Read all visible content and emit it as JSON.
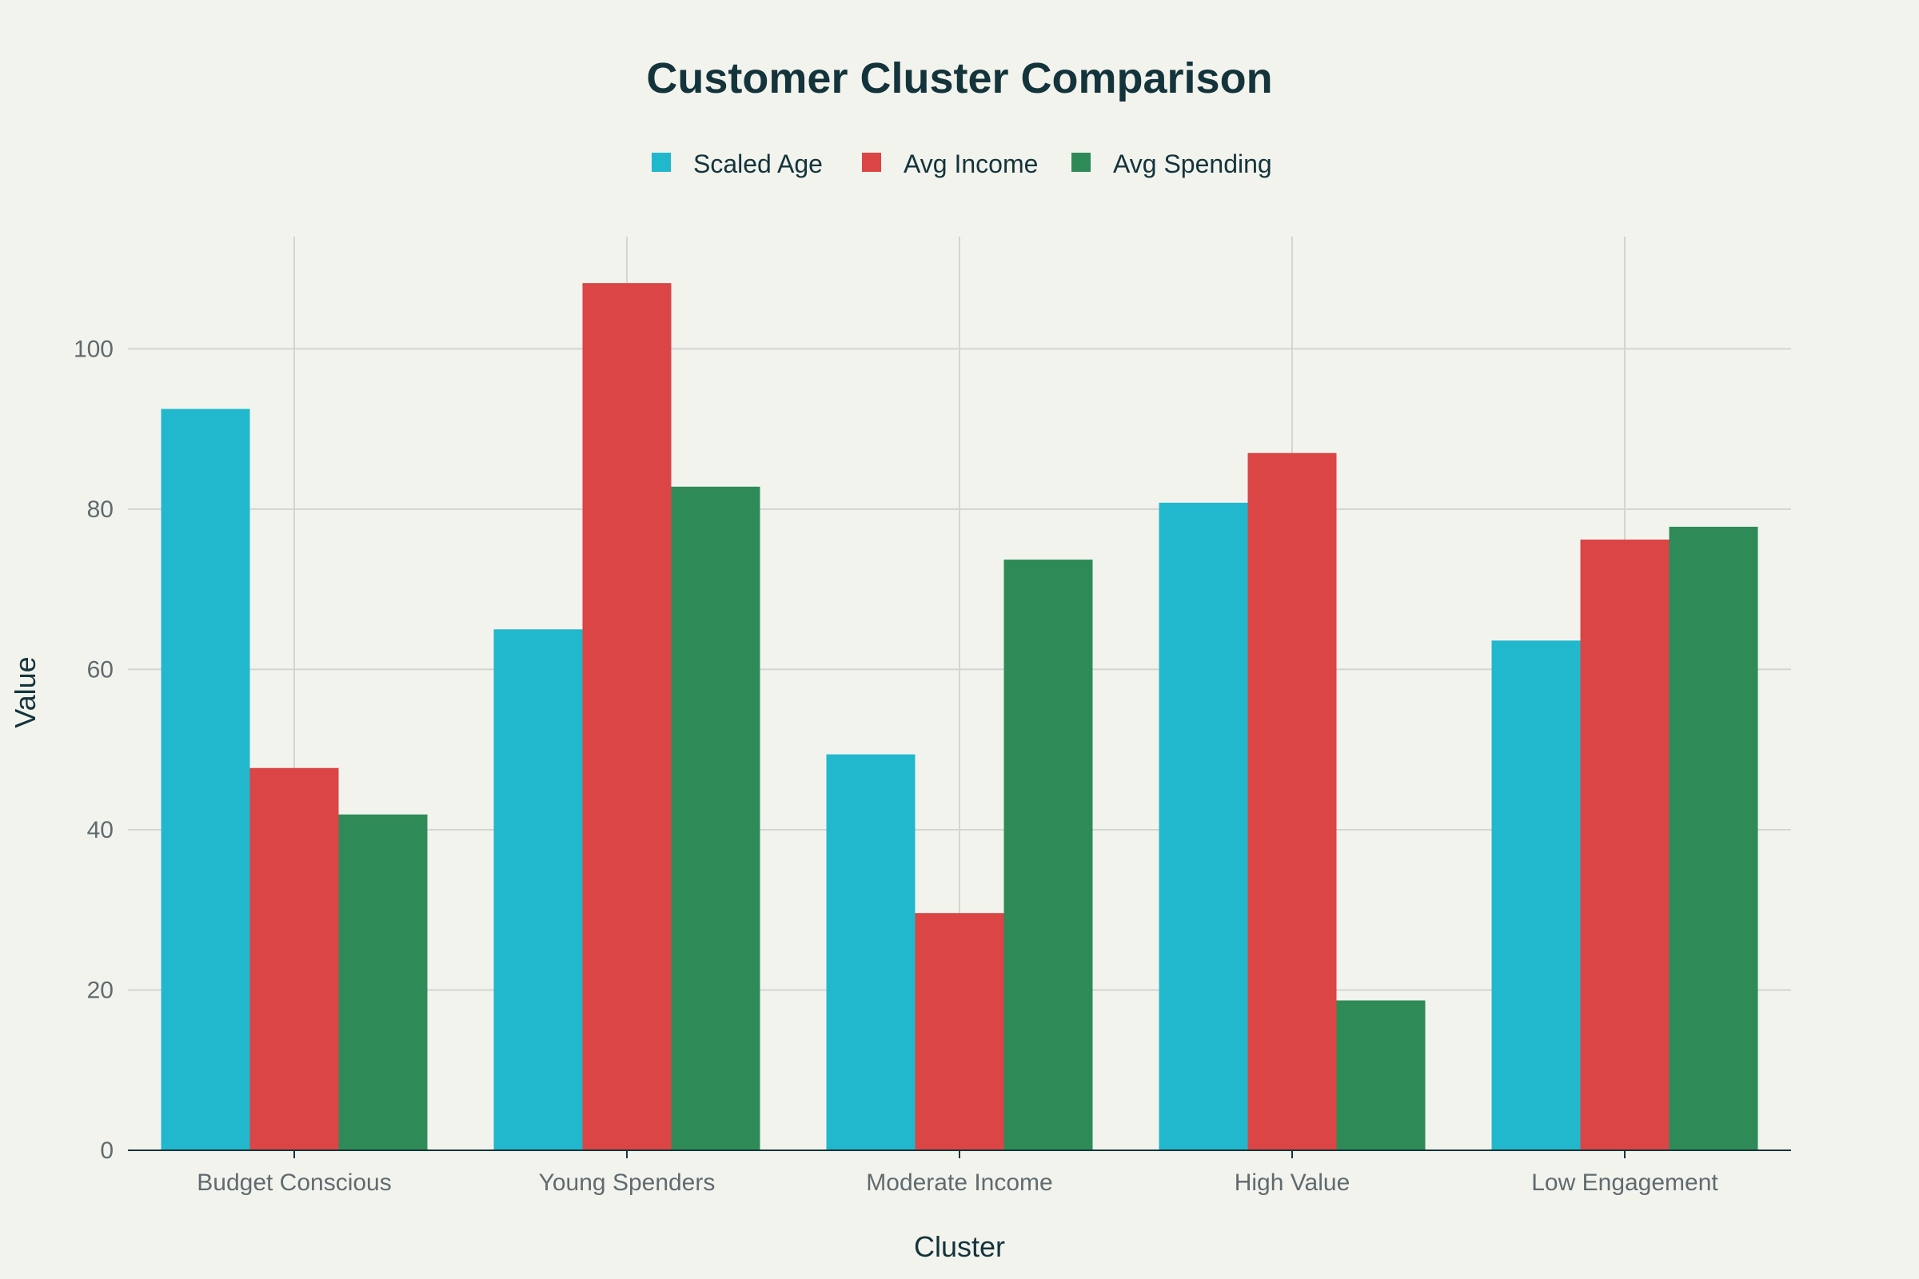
{
  "chart_data": {
    "type": "bar",
    "title": "Customer Cluster Comparison",
    "xlabel": "Cluster",
    "ylabel": "Value",
    "categories": [
      "Budget Conscious",
      "Young Spenders",
      "Moderate Income",
      "High Value",
      "Low Engagement"
    ],
    "series": [
      {
        "name": "Scaled Age",
        "color": "#21b8cd",
        "values": [
          92.5,
          65.0,
          49.4,
          80.8,
          63.6
        ]
      },
      {
        "name": "Avg Income",
        "color": "#db4545",
        "values": [
          47.7,
          108.2,
          29.6,
          87.0,
          76.2
        ]
      },
      {
        "name": "Avg Spending",
        "color": "#2e8b57",
        "values": [
          41.9,
          82.8,
          73.7,
          18.7,
          77.8
        ]
      }
    ],
    "ylim": [
      0,
      114
    ],
    "yticks": [
      0,
      20,
      40,
      60,
      80,
      100
    ],
    "grid": true,
    "legend_position": "top-center"
  }
}
